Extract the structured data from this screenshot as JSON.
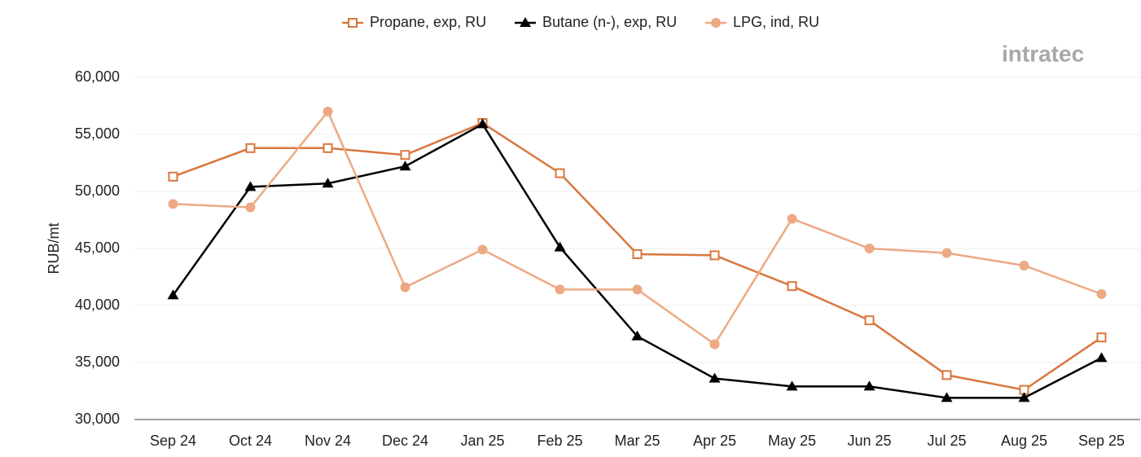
{
  "logo": "intratec",
  "chart_data": {
    "type": "line",
    "y_label": "RUB/mt",
    "categories": [
      "Sep 24",
      "Oct 24",
      "Nov 24",
      "Dec 24",
      "Jan 25",
      "Feb 25",
      "Mar 25",
      "Apr 25",
      "May 25",
      "Jun 25",
      "Jul 25",
      "Aug 25",
      "Sep 25"
    ],
    "series": [
      {
        "name": "Propane, exp, RU",
        "color": "#d9773f",
        "marker": "open-square",
        "values": [
          51300,
          53800,
          53800,
          53200,
          56000,
          51600,
          44500,
          44400,
          41700,
          38700,
          33900,
          32600,
          37200
        ]
      },
      {
        "name": "Butane (n-), exp, RU",
        "color": "#000000",
        "marker": "triangle",
        "values": [
          40900,
          50400,
          50700,
          52200,
          55900,
          45100,
          37300,
          33600,
          32900,
          32900,
          31900,
          31900,
          35400
        ]
      },
      {
        "name": "LPG, ind, RU",
        "color": "#eda983",
        "marker": "circle",
        "values": [
          48900,
          48600,
          57000,
          41600,
          44900,
          41400,
          41400,
          36600,
          47600,
          45000,
          44600,
          43500,
          41000
        ]
      }
    ],
    "ylim": [
      30000,
      60000
    ],
    "yticks": [
      {
        "value": 30000,
        "label": "30,000"
      },
      {
        "value": 35000,
        "label": "35,000"
      },
      {
        "value": 40000,
        "label": "40,000"
      },
      {
        "value": 45000,
        "label": "45,000"
      },
      {
        "value": 50000,
        "label": "50,000"
      },
      {
        "value": 55000,
        "label": "55,000"
      },
      {
        "value": 60000,
        "label": "60,000"
      }
    ],
    "grid": true,
    "legend": "top"
  }
}
